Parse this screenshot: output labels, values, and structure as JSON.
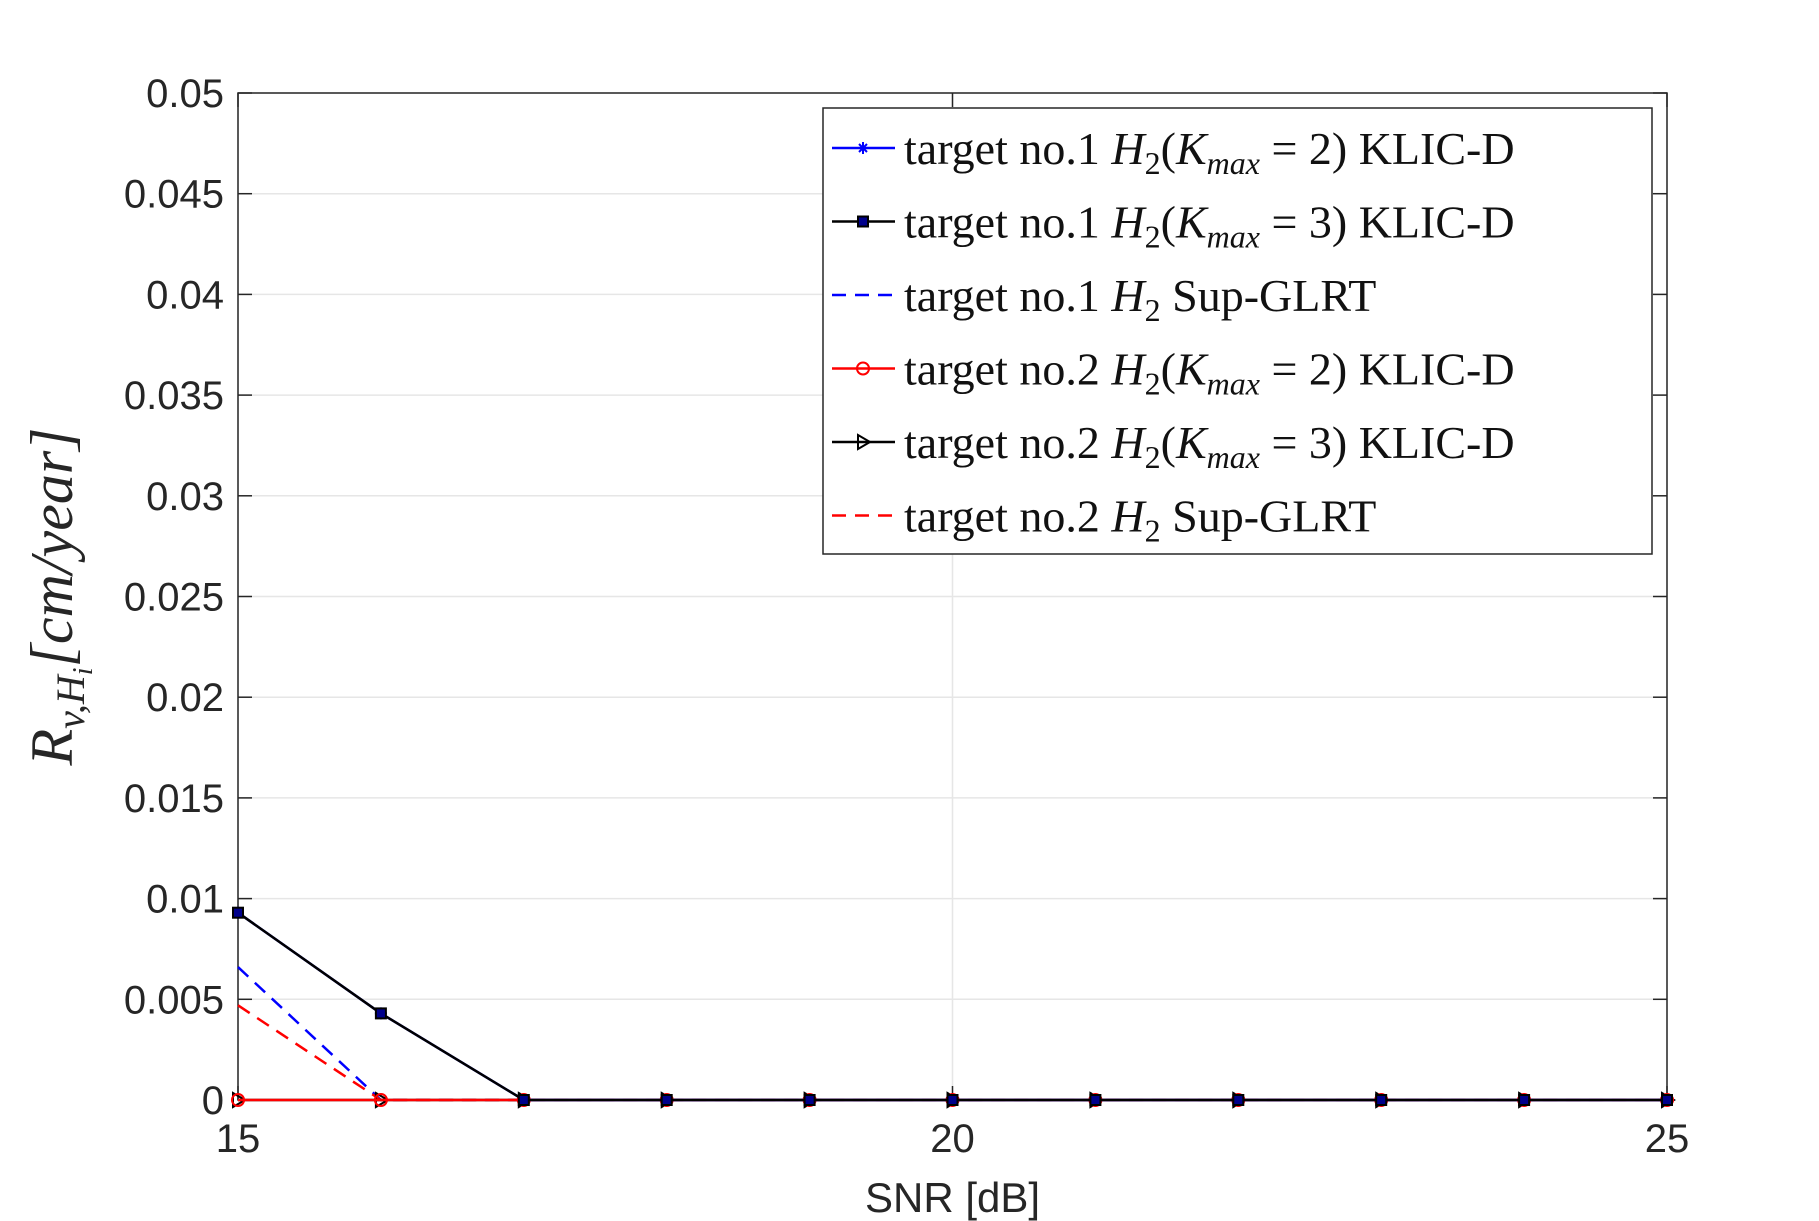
{
  "chart_data": {
    "type": "line",
    "title": "",
    "xlabel": "SNR [dB]",
    "ylabel": "R_{v,H_i}[cm/year]",
    "ylabel_parts": {
      "main": "R",
      "sub": "v,H",
      "subsub": "i",
      "unit": "[cm/year]"
    },
    "xlim": [
      15,
      25
    ],
    "ylim": [
      0,
      0.05
    ],
    "x_ticks": [
      15,
      20,
      25
    ],
    "x_tick_labels": [
      "15",
      "20",
      "25"
    ],
    "y_ticks": [
      0,
      0.005,
      0.01,
      0.015,
      0.02,
      0.025,
      0.03,
      0.035,
      0.04,
      0.045,
      0.05
    ],
    "y_tick_labels": [
      "0",
      "0.005",
      "0.01",
      "0.015",
      "0.02",
      "0.025",
      "0.03",
      "0.035",
      "0.04",
      "0.045",
      "0.05"
    ],
    "grid": true,
    "legend_position": "top-right",
    "x": [
      15,
      16,
      17,
      18,
      19,
      20,
      21,
      22,
      23,
      24,
      25
    ],
    "series": [
      {
        "name": "target no.1 H2(Kmax = 2) KLIC-D",
        "legend": {
          "pre": "target no.1 ",
          "H": "H",
          "H_sub": "2",
          "open": "(",
          "K": "K",
          "K_sub": "max",
          "post": " = 2) KLIC-D"
        },
        "color": "#0000ff",
        "dash": "solid",
        "marker": "asterisk",
        "values": [
          0.0093,
          0.0043,
          0,
          0,
          0,
          0,
          0,
          0,
          0,
          0,
          0
        ]
      },
      {
        "name": "target no.1 H2(Kmax = 3) KLIC-D",
        "legend": {
          "pre": "target no.1 ",
          "H": "H",
          "H_sub": "2",
          "open": "(",
          "K": "K",
          "K_sub": "max",
          "post": " = 3) KLIC-D"
        },
        "color": "#000000",
        "dash": "solid",
        "marker": "square",
        "values": [
          0.0093,
          0.0043,
          0,
          0,
          0,
          0,
          0,
          0,
          0,
          0,
          0
        ]
      },
      {
        "name": "target no.1 H2 Sup-GLRT",
        "legend": {
          "pre": "target no.1 ",
          "H": "H",
          "H_sub": "2",
          "open": "",
          "K": "",
          "K_sub": "",
          "post": " Sup-GLRT"
        },
        "color": "#0000ff",
        "dash": "dashed",
        "marker": "none",
        "values": [
          0.0066,
          0,
          0,
          0,
          0,
          0,
          0,
          0,
          0,
          0,
          0
        ]
      },
      {
        "name": "target no.2 H2(Kmax = 2) KLIC-D",
        "legend": {
          "pre": "target no.2 ",
          "H": "H",
          "H_sub": "2",
          "open": "(",
          "K": "K",
          "K_sub": "max",
          "post": " = 2) KLIC-D"
        },
        "color": "#ff0000",
        "dash": "solid",
        "marker": "circle",
        "values": [
          0,
          0,
          0,
          0,
          0,
          0,
          0,
          0,
          0,
          0,
          0
        ]
      },
      {
        "name": "target no.2 H2(Kmax = 3) KLIC-D",
        "legend": {
          "pre": "target no.2 ",
          "H": "H",
          "H_sub": "2",
          "open": "(",
          "K": "K",
          "K_sub": "max",
          "post": " = 3) KLIC-D"
        },
        "color": "#000000",
        "dash": "solid",
        "marker": "triangle-right",
        "values": [
          0,
          0,
          0,
          0,
          0,
          0,
          0,
          0,
          0,
          0,
          0
        ]
      },
      {
        "name": "target no.2 H2 Sup-GLRT",
        "legend": {
          "pre": "target no.2 ",
          "H": "H",
          "H_sub": "2",
          "open": "",
          "K": "",
          "K_sub": "",
          "post": " Sup-GLRT"
        },
        "color": "#ff0000",
        "dash": "dashed",
        "marker": "none",
        "values": [
          0.0047,
          0,
          0,
          0,
          0,
          0,
          0,
          0,
          0,
          0,
          0
        ]
      }
    ]
  }
}
